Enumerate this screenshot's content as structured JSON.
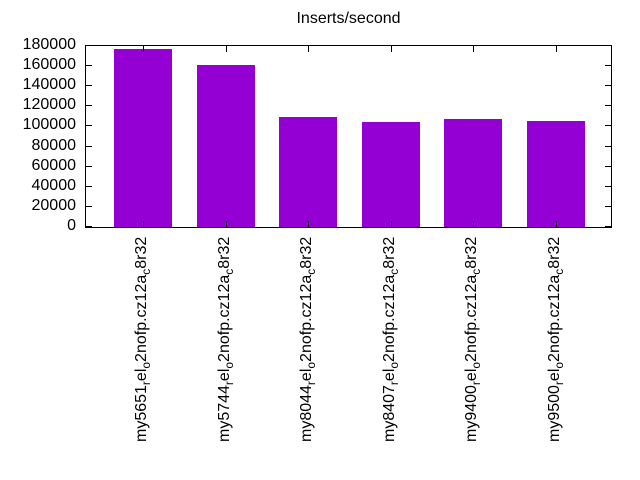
{
  "chart_data": {
    "type": "bar",
    "title": "Inserts/second",
    "xlabel": "",
    "ylabel": "",
    "ylim": [
      0,
      180000
    ],
    "ytick_step": 20000,
    "yticks": [
      0,
      20000,
      40000,
      60000,
      80000,
      100000,
      120000,
      140000,
      160000,
      180000
    ],
    "grid": false,
    "legend": "none",
    "bar_color": "#9400d3",
    "categories": [
      {
        "parts": [
          {
            "t": "my5651"
          },
          {
            "sub": "r"
          },
          {
            "t": "el"
          },
          {
            "sub": "o"
          },
          {
            "t": "2nofp.cz12a"
          },
          {
            "sub": "c"
          },
          {
            "t": "8r32"
          }
        ]
      },
      {
        "parts": [
          {
            "t": "my5744"
          },
          {
            "sub": "r"
          },
          {
            "t": "el"
          },
          {
            "sub": "o"
          },
          {
            "t": "2nofp.cz12a"
          },
          {
            "sub": "c"
          },
          {
            "t": "8r32"
          }
        ]
      },
      {
        "parts": [
          {
            "t": "my8044"
          },
          {
            "sub": "r"
          },
          {
            "t": "el"
          },
          {
            "sub": "o"
          },
          {
            "t": "2nofp.cz12a"
          },
          {
            "sub": "c"
          },
          {
            "t": "8r32"
          }
        ]
      },
      {
        "parts": [
          {
            "t": "my8407"
          },
          {
            "sub": "r"
          },
          {
            "t": "el"
          },
          {
            "sub": "o"
          },
          {
            "t": "2nofp.cz12a"
          },
          {
            "sub": "c"
          },
          {
            "t": "8r32"
          }
        ]
      },
      {
        "parts": [
          {
            "t": "my9400"
          },
          {
            "sub": "r"
          },
          {
            "t": "el"
          },
          {
            "sub": "o"
          },
          {
            "t": "2nofp.cz12a"
          },
          {
            "sub": "c"
          },
          {
            "t": "8r32"
          }
        ]
      },
      {
        "parts": [
          {
            "t": "my9500"
          },
          {
            "sub": "r"
          },
          {
            "t": "el"
          },
          {
            "sub": "o"
          },
          {
            "t": "2nofp.cz12a"
          },
          {
            "sub": "c"
          },
          {
            "t": "8r32"
          }
        ]
      }
    ],
    "values": [
      177000,
      161000,
      109000,
      104000,
      107000,
      105000
    ]
  }
}
